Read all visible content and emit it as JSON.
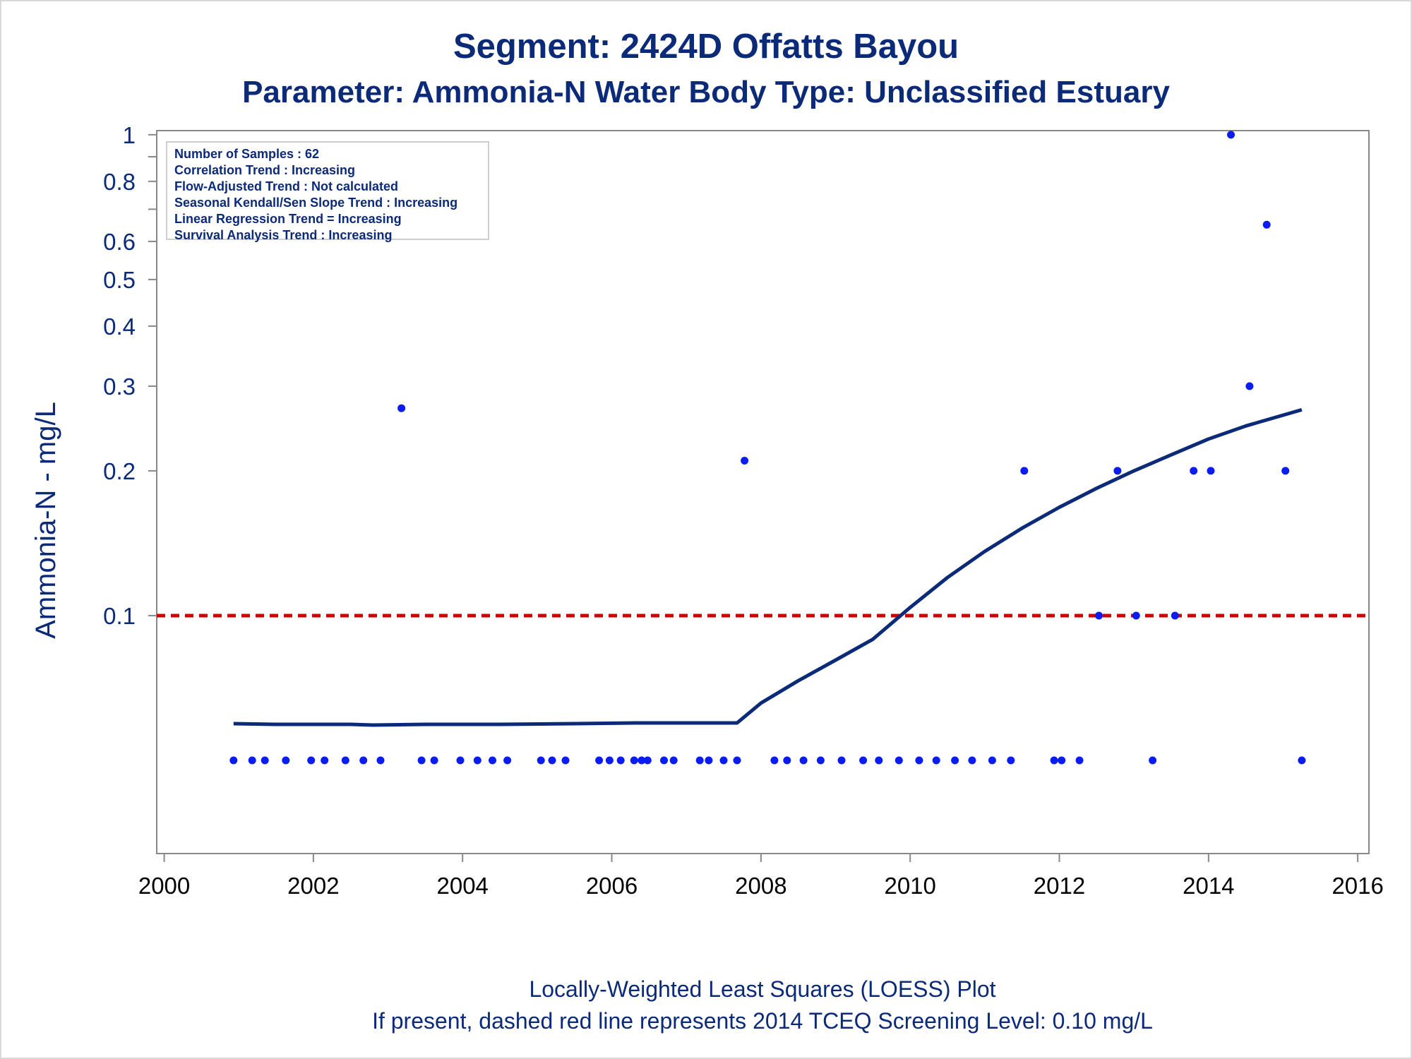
{
  "titles": {
    "line1": "Segment: 2424D  Offatts Bayou",
    "line2": "Parameter: Ammonia-N   Water Body Type: Unclassified Estuary"
  },
  "footnotes": {
    "line1": "Locally-Weighted Least Squares (LOESS) Plot",
    "line2": "If present, dashed red line represents 2014 TCEQ Screening Level: 0.10 mg/L"
  },
  "stats_box": {
    "lines": [
      "Number of Samples : 62",
      "Correlation Trend : Increasing",
      "Flow-Adjusted Trend : Not calculated",
      "Seasonal Kendall/Sen Slope Trend : Increasing",
      "Linear Regression Trend = Increasing",
      "Survival Analysis Trend : Increasing"
    ]
  },
  "colors": {
    "text": "#0b2a78",
    "points": "#0a1cf0",
    "loess": "#0b2a78",
    "screening": "#cc0000",
    "axis": "#888888"
  },
  "chart_data": {
    "type": "scatter",
    "title": "Segment: 2424D  Offatts Bayou",
    "subtitle": "Parameter: Ammonia-N   Water Body Type: Unclassified Estuary",
    "xlabel": "",
    "ylabel": "Ammonia-N - mg/L",
    "y_scale": "log",
    "xlim": [
      1999.9,
      2016.15
    ],
    "ylim": [
      0.032,
      1.02
    ],
    "x_ticks": [
      "2000",
      "2002",
      "2004",
      "2006",
      "2008",
      "2010",
      "2012",
      "2014",
      "2016"
    ],
    "y_ticks": [
      "0.1",
      "0.2",
      "0.3",
      "0.4",
      "0.5",
      "0.6",
      "0.8",
      "1"
    ],
    "y_minor_ticks": [
      0.7,
      0.9
    ],
    "grid": false,
    "screening_level": 0.1,
    "series": [
      {
        "name": "",
        "kind": "points",
        "points": [
          [
            2000.93,
            0.05
          ],
          [
            2001.18,
            0.05
          ],
          [
            2001.35,
            0.05
          ],
          [
            2001.63,
            0.05
          ],
          [
            2001.97,
            0.05
          ],
          [
            2002.15,
            0.05
          ],
          [
            2002.43,
            0.05
          ],
          [
            2002.67,
            0.05
          ],
          [
            2002.9,
            0.05
          ],
          [
            2003.18,
            0.27
          ],
          [
            2003.45,
            0.05
          ],
          [
            2003.62,
            0.05
          ],
          [
            2003.97,
            0.05
          ],
          [
            2004.2,
            0.05
          ],
          [
            2004.4,
            0.05
          ],
          [
            2004.6,
            0.05
          ],
          [
            2005.05,
            0.05
          ],
          [
            2005.2,
            0.05
          ],
          [
            2005.38,
            0.05
          ],
          [
            2005.83,
            0.05
          ],
          [
            2005.97,
            0.05
          ],
          [
            2006.12,
            0.05
          ],
          [
            2006.3,
            0.05
          ],
          [
            2006.4,
            0.05
          ],
          [
            2006.48,
            0.05
          ],
          [
            2006.7,
            0.05
          ],
          [
            2006.83,
            0.05
          ],
          [
            2007.18,
            0.05
          ],
          [
            2007.3,
            0.05
          ],
          [
            2007.5,
            0.05
          ],
          [
            2007.68,
            0.05
          ],
          [
            2007.78,
            0.21
          ],
          [
            2008.18,
            0.05
          ],
          [
            2008.35,
            0.05
          ],
          [
            2008.57,
            0.05
          ],
          [
            2008.8,
            0.05
          ],
          [
            2009.08,
            0.05
          ],
          [
            2009.37,
            0.05
          ],
          [
            2009.58,
            0.05
          ],
          [
            2009.85,
            0.05
          ],
          [
            2010.12,
            0.05
          ],
          [
            2010.35,
            0.05
          ],
          [
            2010.6,
            0.05
          ],
          [
            2010.83,
            0.05
          ],
          [
            2011.1,
            0.05
          ],
          [
            2011.35,
            0.05
          ],
          [
            2011.53,
            0.2
          ],
          [
            2011.93,
            0.05
          ],
          [
            2012.03,
            0.05
          ],
          [
            2012.27,
            0.05
          ],
          [
            2012.53,
            0.1
          ],
          [
            2012.78,
            0.2
          ],
          [
            2013.03,
            0.1
          ],
          [
            2013.25,
            0.05
          ],
          [
            2013.55,
            0.1
          ],
          [
            2013.8,
            0.2
          ],
          [
            2014.03,
            0.2
          ],
          [
            2014.3,
            1.0
          ],
          [
            2014.55,
            0.3
          ],
          [
            2014.78,
            0.65
          ],
          [
            2015.03,
            0.2
          ],
          [
            2015.25,
            0.05
          ]
        ]
      },
      {
        "name": "",
        "kind": "loess",
        "points": [
          [
            2000.93,
            0.0596
          ],
          [
            2001.5,
            0.0594
          ],
          [
            2002.5,
            0.0594
          ],
          [
            2002.8,
            0.0592
          ],
          [
            2003.5,
            0.0594
          ],
          [
            2004.5,
            0.0594
          ],
          [
            2005.5,
            0.0596
          ],
          [
            2006.3,
            0.0598
          ],
          [
            2007.0,
            0.0598
          ],
          [
            2007.68,
            0.0598
          ],
          [
            2008.0,
            0.0658
          ],
          [
            2008.5,
            0.0732
          ],
          [
            2009.0,
            0.0808
          ],
          [
            2009.5,
            0.0893
          ],
          [
            2010.0,
            0.104
          ],
          [
            2010.5,
            0.12
          ],
          [
            2011.0,
            0.136
          ],
          [
            2011.5,
            0.152
          ],
          [
            2012.0,
            0.168
          ],
          [
            2012.5,
            0.184
          ],
          [
            2013.0,
            0.2
          ],
          [
            2013.5,
            0.216
          ],
          [
            2014.0,
            0.233
          ],
          [
            2014.5,
            0.248
          ],
          [
            2015.25,
            0.268
          ]
        ]
      }
    ]
  }
}
